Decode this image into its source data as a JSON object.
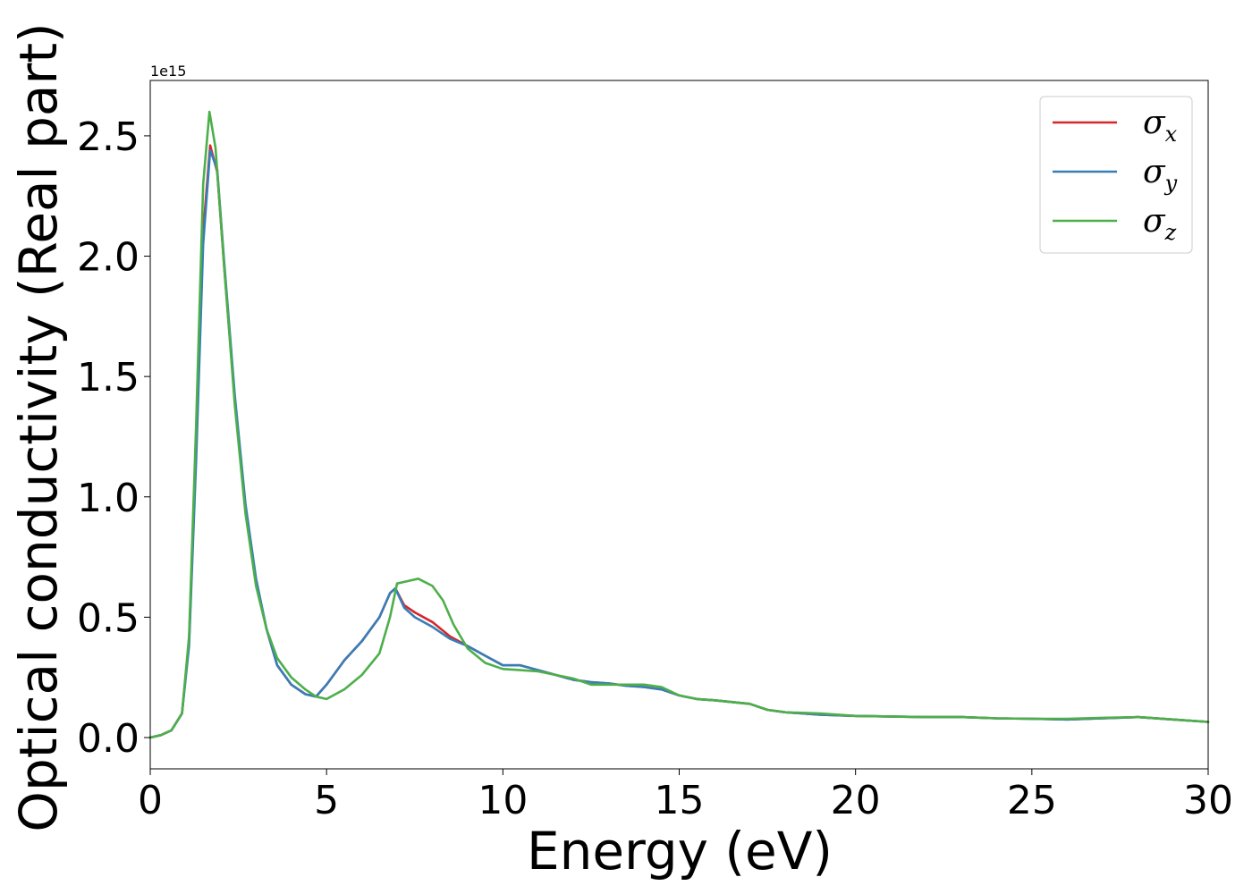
{
  "chart_data": {
    "type": "line",
    "xlabel": "Energy (eV)",
    "ylabel": "Optical conductivity (Real part)",
    "y_offset_label": "1e15",
    "xlim": [
      0,
      30
    ],
    "ylim": [
      -0.13,
      2.73
    ],
    "x_ticks": [
      0,
      5,
      10,
      15,
      20,
      25,
      30
    ],
    "x_tick_labels": [
      "0",
      "5",
      "10",
      "15",
      "20",
      "25",
      "30"
    ],
    "y_ticks": [
      0.0,
      0.5,
      1.0,
      1.5,
      2.0,
      2.5
    ],
    "y_tick_labels": [
      "0.0",
      "0.5",
      "1.0",
      "1.5",
      "2.0",
      "2.5"
    ],
    "grid": false,
    "legend_position": "top-right",
    "y_unit_scale": "1e15",
    "series": [
      {
        "name": "σx",
        "legend_base": "σ",
        "legend_sub": "x",
        "color": "#d62728",
        "points": [
          [
            0,
            0
          ],
          [
            0.3,
            0.01
          ],
          [
            0.6,
            0.03
          ],
          [
            0.9,
            0.1
          ],
          [
            1.1,
            0.4
          ],
          [
            1.3,
            1.2
          ],
          [
            1.5,
            2.1
          ],
          [
            1.7,
            2.46
          ],
          [
            1.9,
            2.35
          ],
          [
            2.1,
            1.95
          ],
          [
            2.4,
            1.4
          ],
          [
            2.7,
            0.95
          ],
          [
            3.0,
            0.65
          ],
          [
            3.3,
            0.45
          ],
          [
            3.6,
            0.3
          ],
          [
            4.0,
            0.22
          ],
          [
            4.4,
            0.18
          ],
          [
            4.7,
            0.17
          ],
          [
            5.0,
            0.22
          ],
          [
            5.5,
            0.32
          ],
          [
            6.0,
            0.4
          ],
          [
            6.5,
            0.5
          ],
          [
            6.8,
            0.6
          ],
          [
            6.95,
            0.62
          ],
          [
            7.2,
            0.55
          ],
          [
            7.5,
            0.52
          ],
          [
            8.0,
            0.48
          ],
          [
            8.5,
            0.42
          ],
          [
            9.0,
            0.38
          ],
          [
            9.5,
            0.34
          ],
          [
            10.0,
            0.3
          ],
          [
            10.5,
            0.3
          ],
          [
            11.0,
            0.28
          ],
          [
            11.5,
            0.26
          ],
          [
            12.0,
            0.24
          ],
          [
            12.5,
            0.23
          ],
          [
            13.0,
            0.225
          ],
          [
            13.5,
            0.215
          ],
          [
            14.0,
            0.21
          ],
          [
            14.5,
            0.2
          ],
          [
            15.0,
            0.175
          ],
          [
            15.5,
            0.16
          ],
          [
            16.0,
            0.155
          ],
          [
            17.0,
            0.14
          ],
          [
            17.5,
            0.115
          ],
          [
            18.0,
            0.105
          ],
          [
            19.0,
            0.095
          ],
          [
            20.0,
            0.09
          ],
          [
            22.0,
            0.085
          ],
          [
            23.0,
            0.085
          ],
          [
            24.0,
            0.08
          ],
          [
            25.0,
            0.078
          ],
          [
            26.0,
            0.075
          ],
          [
            27.0,
            0.08
          ],
          [
            28.0,
            0.085
          ],
          [
            29.0,
            0.075
          ],
          [
            30.0,
            0.065
          ]
        ]
      },
      {
        "name": "σy",
        "legend_base": "σ",
        "legend_sub": "y",
        "color": "#377eb8",
        "points": [
          [
            0,
            0
          ],
          [
            0.3,
            0.01
          ],
          [
            0.6,
            0.03
          ],
          [
            0.9,
            0.1
          ],
          [
            1.1,
            0.38
          ],
          [
            1.3,
            1.15
          ],
          [
            1.5,
            2.05
          ],
          [
            1.7,
            2.44
          ],
          [
            1.9,
            2.36
          ],
          [
            2.1,
            1.97
          ],
          [
            2.4,
            1.42
          ],
          [
            2.7,
            0.97
          ],
          [
            3.0,
            0.66
          ],
          [
            3.3,
            0.45
          ],
          [
            3.6,
            0.3
          ],
          [
            4.0,
            0.22
          ],
          [
            4.4,
            0.18
          ],
          [
            4.7,
            0.17
          ],
          [
            5.0,
            0.22
          ],
          [
            5.5,
            0.32
          ],
          [
            6.0,
            0.4
          ],
          [
            6.5,
            0.5
          ],
          [
            6.8,
            0.6
          ],
          [
            6.95,
            0.62
          ],
          [
            7.2,
            0.54
          ],
          [
            7.5,
            0.5
          ],
          [
            8.0,
            0.46
          ],
          [
            8.5,
            0.41
          ],
          [
            9.0,
            0.38
          ],
          [
            9.5,
            0.34
          ],
          [
            10.0,
            0.3
          ],
          [
            10.5,
            0.3
          ],
          [
            11.0,
            0.28
          ],
          [
            11.5,
            0.26
          ],
          [
            12.0,
            0.24
          ],
          [
            12.5,
            0.23
          ],
          [
            13.0,
            0.225
          ],
          [
            13.5,
            0.215
          ],
          [
            14.0,
            0.21
          ],
          [
            14.5,
            0.2
          ],
          [
            15.0,
            0.175
          ],
          [
            15.5,
            0.16
          ],
          [
            16.0,
            0.155
          ],
          [
            17.0,
            0.14
          ],
          [
            17.5,
            0.115
          ],
          [
            18.0,
            0.105
          ],
          [
            19.0,
            0.095
          ],
          [
            20.0,
            0.09
          ],
          [
            22.0,
            0.085
          ],
          [
            23.0,
            0.085
          ],
          [
            24.0,
            0.08
          ],
          [
            25.0,
            0.078
          ],
          [
            26.0,
            0.075
          ],
          [
            27.0,
            0.08
          ],
          [
            28.0,
            0.085
          ],
          [
            29.0,
            0.075
          ],
          [
            30.0,
            0.065
          ]
        ]
      },
      {
        "name": "σz",
        "legend_base": "σ",
        "legend_sub": "z",
        "color": "#4daf4a",
        "points": [
          [
            0,
            0
          ],
          [
            0.3,
            0.01
          ],
          [
            0.6,
            0.03
          ],
          [
            0.9,
            0.1
          ],
          [
            1.1,
            0.42
          ],
          [
            1.3,
            1.3
          ],
          [
            1.5,
            2.3
          ],
          [
            1.68,
            2.6
          ],
          [
            1.85,
            2.45
          ],
          [
            2.1,
            1.95
          ],
          [
            2.4,
            1.38
          ],
          [
            2.7,
            0.93
          ],
          [
            3.0,
            0.63
          ],
          [
            3.3,
            0.45
          ],
          [
            3.6,
            0.33
          ],
          [
            4.0,
            0.25
          ],
          [
            4.4,
            0.2
          ],
          [
            4.7,
            0.17
          ],
          [
            5.0,
            0.16
          ],
          [
            5.5,
            0.2
          ],
          [
            6.0,
            0.26
          ],
          [
            6.5,
            0.35
          ],
          [
            6.8,
            0.5
          ],
          [
            7.0,
            0.64
          ],
          [
            7.3,
            0.65
          ],
          [
            7.6,
            0.66
          ],
          [
            8.0,
            0.63
          ],
          [
            8.3,
            0.57
          ],
          [
            8.6,
            0.47
          ],
          [
            9.0,
            0.37
          ],
          [
            9.5,
            0.31
          ],
          [
            10.0,
            0.285
          ],
          [
            10.5,
            0.28
          ],
          [
            11.0,
            0.275
          ],
          [
            11.5,
            0.26
          ],
          [
            12.0,
            0.245
          ],
          [
            12.5,
            0.22
          ],
          [
            13.0,
            0.22
          ],
          [
            13.5,
            0.22
          ],
          [
            14.0,
            0.22
          ],
          [
            14.5,
            0.21
          ],
          [
            15.0,
            0.175
          ],
          [
            15.5,
            0.16
          ],
          [
            16.0,
            0.155
          ],
          [
            17.0,
            0.14
          ],
          [
            17.5,
            0.115
          ],
          [
            18.0,
            0.105
          ],
          [
            19.0,
            0.1
          ],
          [
            20.0,
            0.09
          ],
          [
            22.0,
            0.085
          ],
          [
            23.0,
            0.085
          ],
          [
            24.0,
            0.08
          ],
          [
            25.0,
            0.078
          ],
          [
            26.0,
            0.078
          ],
          [
            27.0,
            0.082
          ],
          [
            28.0,
            0.085
          ],
          [
            29.0,
            0.075
          ],
          [
            30.0,
            0.065
          ]
        ]
      }
    ]
  }
}
